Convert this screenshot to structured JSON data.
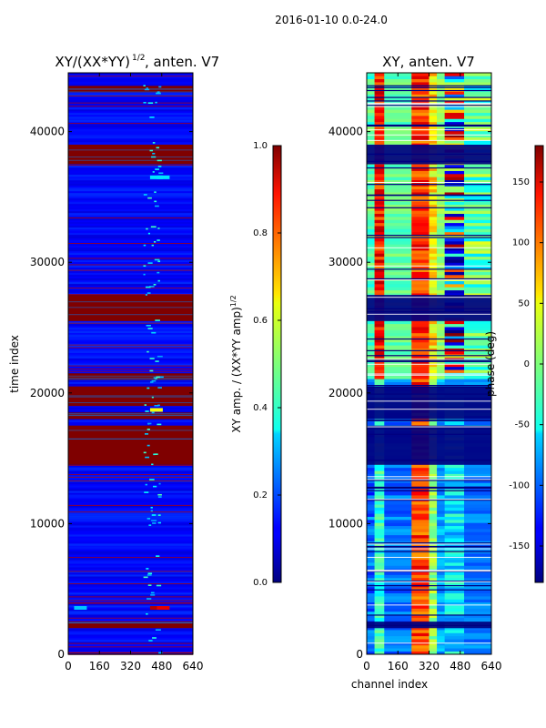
{
  "suptitle": "2016-01-10 0.0-24.0",
  "chart_data": [
    {
      "type": "heatmap",
      "title": "XY/(XX*YY)",
      "title_exponent": "1/2",
      "title_suffix": ", anten. V7",
      "xlabel": "",
      "ylabel": "time index",
      "xlim": [
        0,
        640
      ],
      "ylim": [
        0,
        44500
      ],
      "xticks": [
        "0",
        "160",
        "320",
        "480",
        "640"
      ],
      "yticks": [
        "0",
        "10000",
        "20000",
        "30000",
        "40000"
      ],
      "colorbar": {
        "label": "XY amp. / (XX*YY amp)",
        "label_exponent": "1/2",
        "range": [
          0.0,
          1.0
        ],
        "ticks": [
          "0.0",
          "0.2",
          "0.4",
          "0.6",
          "0.8",
          "1.0"
        ]
      },
      "saturated_bands": [
        [
          2000,
          2500
        ],
        [
          14500,
          17500
        ],
        [
          18000,
          18500
        ],
        [
          19000,
          20500
        ],
        [
          21000,
          21500
        ],
        [
          25500,
          27500
        ],
        [
          37500,
          39000
        ],
        [
          43000,
          43500
        ]
      ]
    },
    {
      "type": "heatmap",
      "title": "XY, anten. V7",
      "xlabel": "channel index",
      "ylabel": "",
      "xlim": [
        0,
        640
      ],
      "ylim": [
        0,
        44500
      ],
      "xticks": [
        "0",
        "160",
        "320",
        "480",
        "640"
      ],
      "yticks": [
        "0",
        "10000",
        "20000",
        "30000",
        "40000"
      ],
      "colorbar": {
        "label": "phase (deg)",
        "range": [
          -180,
          180
        ],
        "ticks": [
          "-150",
          "-100",
          "-50",
          "0",
          "50",
          "100",
          "150"
        ]
      },
      "dark_bands": [
        [
          2000,
          2500
        ],
        [
          14500,
          17500
        ],
        [
          18000,
          20500
        ],
        [
          25500,
          27500
        ],
        [
          37500,
          39000
        ]
      ]
    }
  ]
}
